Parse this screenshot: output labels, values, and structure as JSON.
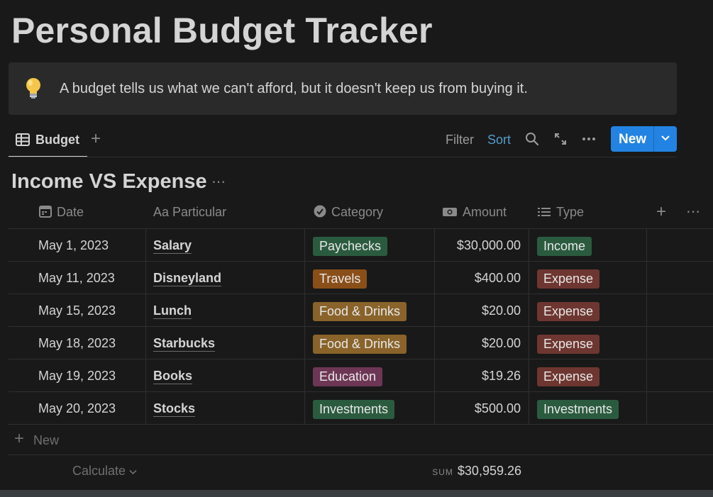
{
  "page": {
    "title": "Personal Budget Tracker",
    "callout": {
      "icon": "lightbulb-icon",
      "text": "A budget tells us what we can't afford, but it doesn't keep us from buying it."
    }
  },
  "toolbar": {
    "view_tab_label": "Budget",
    "filter_label": "Filter",
    "sort_label": "Sort",
    "new_label": "New",
    "icons": [
      "table-icon",
      "plus-icon",
      "search-icon",
      "expand-icon",
      "more-icon",
      "chevron-down-icon"
    ]
  },
  "database": {
    "title": "Income VS Expense",
    "columns": [
      {
        "label": "Date",
        "icon": "calendar-icon"
      },
      {
        "label": "Particular",
        "icon": "title-icon"
      },
      {
        "label": "Category",
        "icon": "check-circle-icon"
      },
      {
        "label": "Amount",
        "icon": "money-icon"
      },
      {
        "label": "Type",
        "icon": "list-icon"
      }
    ],
    "rows": [
      {
        "date": "May 1, 2023",
        "particular": "Salary",
        "category": "Paychecks",
        "amount": "$30,000.00",
        "type": "Income"
      },
      {
        "date": "May 11, 2023",
        "particular": "Disneyland",
        "category": "Travels",
        "amount": "$400.00",
        "type": "Expense"
      },
      {
        "date": "May 15, 2023",
        "particular": "Lunch",
        "category": "Food & Drinks",
        "amount": "$20.00",
        "type": "Expense"
      },
      {
        "date": "May 18, 2023",
        "particular": "Starbucks",
        "category": "Food & Drinks",
        "amount": "$20.00",
        "type": "Expense"
      },
      {
        "date": "May 19, 2023",
        "particular": "Books",
        "category": "Education",
        "amount": "$19.26",
        "type": "Expense"
      },
      {
        "date": "May 20, 2023",
        "particular": "Stocks",
        "category": "Investments",
        "amount": "$500.00",
        "type": "Investments"
      }
    ],
    "new_row_label": "New",
    "calculate_label": "Calculate",
    "sum_key": "SUM",
    "sum_value": "$30,959.26"
  },
  "colors": {
    "background": "#191919",
    "accent_blue": "#2383e2",
    "sort_blue": "#529cca",
    "tag_green": "#2b5b3f",
    "tag_orange": "#8a4e19",
    "tag_yellow": "#89632a",
    "tag_pink": "#6e3655",
    "tag_red": "#6e3630"
  }
}
